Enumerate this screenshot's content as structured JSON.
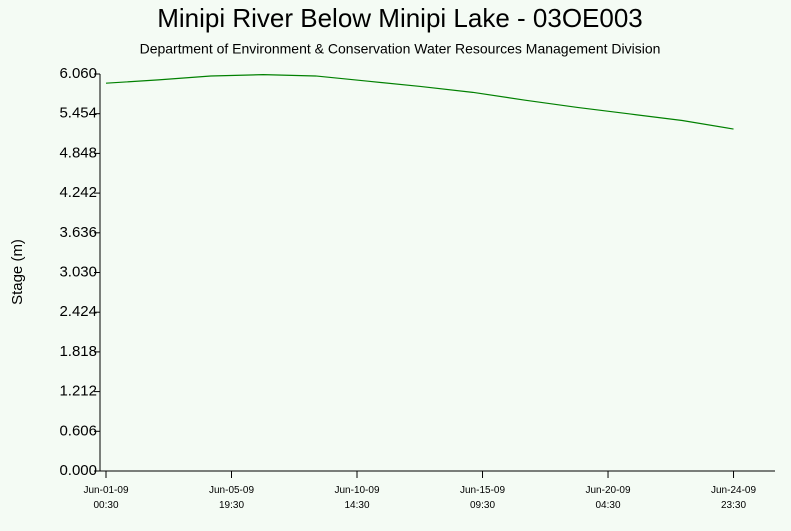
{
  "chart_data": {
    "type": "line",
    "title": "Minipi River Below Minipi Lake - 03OE003",
    "subtitle": "Department of Environment & Conservation Water Resources Management Division",
    "ylabel": "Stage (m)",
    "x": [
      "2009-06-01T00:30",
      "2009-06-03T00:30",
      "2009-06-05T00:30",
      "2009-06-07T00:30",
      "2009-06-09T00:30",
      "2009-06-11T00:30",
      "2009-06-13T00:30",
      "2009-06-15T00:30",
      "2009-06-17T00:30",
      "2009-06-19T00:30",
      "2009-06-21T00:30",
      "2009-06-23T00:30",
      "2009-06-24T23:30"
    ],
    "series": [
      {
        "name": "Stage",
        "color": "#008000",
        "values": [
          5.92,
          5.97,
          6.03,
          6.05,
          6.03,
          5.95,
          5.87,
          5.78,
          5.66,
          5.55,
          5.45,
          5.35,
          5.22
        ]
      }
    ],
    "xlim": [
      "2009-05-31T19:00",
      "2009-06-26T13:30"
    ],
    "xticks": [
      {
        "value": "2009-06-01T00:30",
        "label": "Jun-01-09\n00:30"
      },
      {
        "value": "2009-06-05T19:30",
        "label": "Jun-05-09\n19:30"
      },
      {
        "value": "2009-06-10T14:30",
        "label": "Jun-10-09\n14:30"
      },
      {
        "value": "2009-06-15T09:30",
        "label": "Jun-15-09\n09:30"
      },
      {
        "value": "2009-06-20T04:30",
        "label": "Jun-20-09\n04:30"
      },
      {
        "value": "2009-06-24T23:30",
        "label": "Jun-24-09\n23:30"
      }
    ],
    "ylim": [
      0,
      6.06
    ],
    "yticks": [
      {
        "value": 0,
        "label": "0.000"
      },
      0.606,
      1.212,
      1.818,
      2.424,
      {
        "value": 3.03,
        "label": "3.030"
      },
      3.636,
      4.242,
      4.848,
      5.454,
      {
        "value": 6.06,
        "label": "6.060"
      }
    ]
  }
}
